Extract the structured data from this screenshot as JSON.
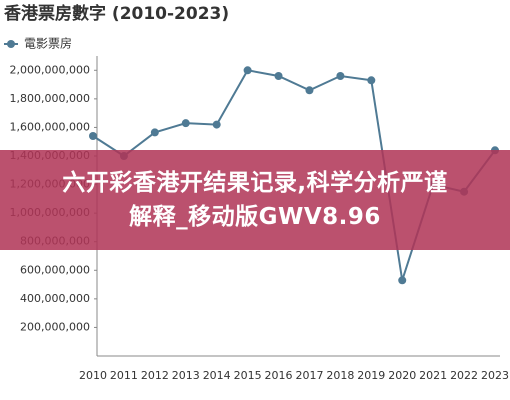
{
  "chart_data": {
    "type": "line",
    "title": "香港票房數字 (2010-2023)",
    "categories": [
      "2010",
      "2011",
      "2012",
      "2013",
      "2014",
      "2015",
      "2016",
      "2017",
      "2018",
      "2019",
      "2020",
      "2021",
      "2022",
      "2023"
    ],
    "series": [
      {
        "name": "電影票房",
        "color": "#4f7a94",
        "values": [
          1540000000,
          1400000000,
          1565000000,
          1630000000,
          1620000000,
          2000000000,
          1960000000,
          1860000000,
          1960000000,
          1930000000,
          530000000,
          1200000000,
          1150000000,
          1440000000
        ]
      }
    ],
    "ylim": [
      0,
      2100000000
    ],
    "yticks": [
      {
        "value": 200000000,
        "label": "200,000,000"
      },
      {
        "value": 400000000,
        "label": "400,000,000"
      },
      {
        "value": 600000000,
        "label": "600,000,000"
      },
      {
        "value": 800000000,
        "label": "800,000,000"
      },
      {
        "value": 1000000000,
        "label": "1,000,000,000"
      },
      {
        "value": 1200000000,
        "label": "1,200,000,000"
      },
      {
        "value": 1400000000,
        "label": "1,400,000,000"
      },
      {
        "value": 1600000000,
        "label": "1,600,000,000"
      },
      {
        "value": 1800000000,
        "label": "1,800,000,000"
      },
      {
        "value": 2000000000,
        "label": "2,000,000,000"
      }
    ],
    "annotation": "六开彩香港开结果记录,科学分析严谨解释_移动版GWV8.96"
  }
}
